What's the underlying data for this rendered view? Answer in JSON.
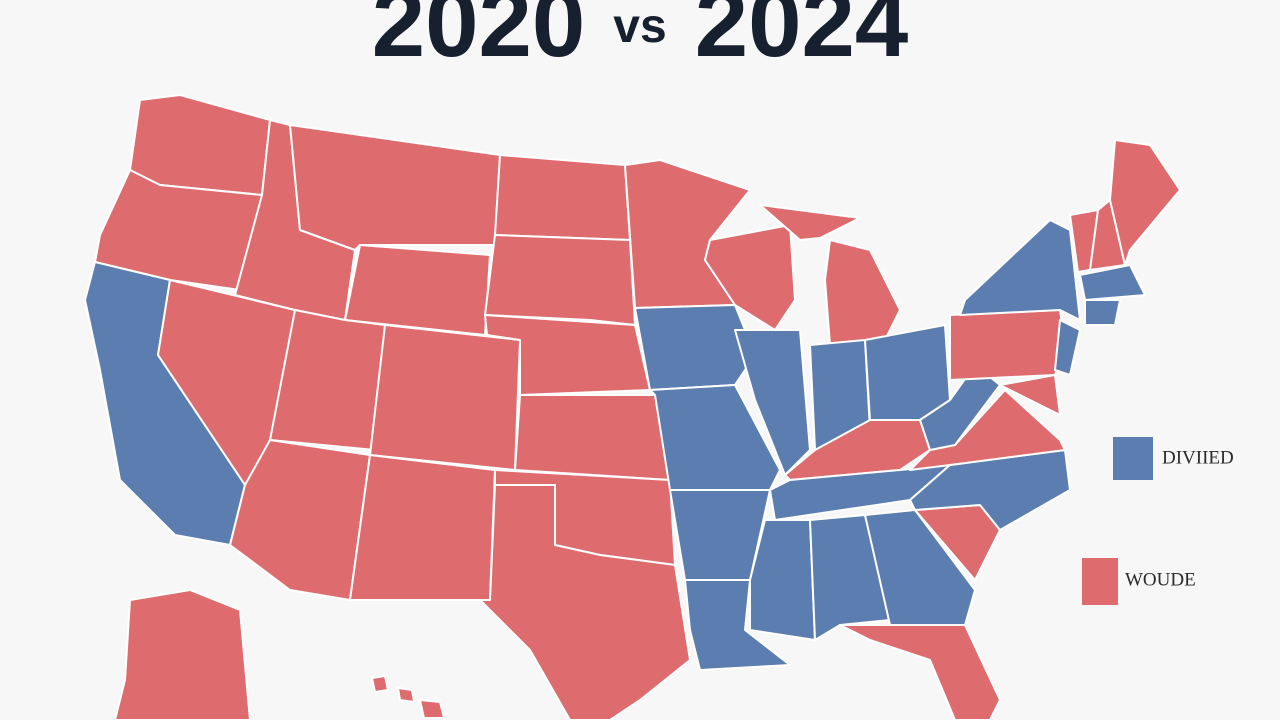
{
  "title": {
    "year1": "2020",
    "vs": "vs",
    "year2": "2024"
  },
  "legend": [
    {
      "label": "DIVIIED",
      "color": "#5b7db0"
    },
    {
      "label": "WOUDE",
      "color": "#de6b6e"
    }
  ]
}
